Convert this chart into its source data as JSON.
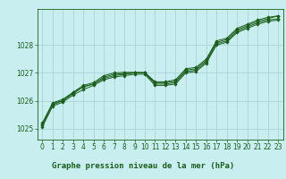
{
  "title": "Graphe pression niveau de la mer (hPa)",
  "background_color": "#c8eef0",
  "grid_color": "#aad4d8",
  "line_color": "#1a5e1a",
  "xlim": [
    -0.5,
    23.5
  ],
  "ylim": [
    1024.6,
    1029.3
  ],
  "yticks": [
    1025,
    1026,
    1027,
    1028
  ],
  "xticks": [
    0,
    1,
    2,
    3,
    4,
    5,
    6,
    7,
    8,
    9,
    10,
    11,
    12,
    13,
    14,
    15,
    16,
    17,
    18,
    19,
    20,
    21,
    22,
    23
  ],
  "series1_x": [
    0,
    1,
    2,
    3,
    4,
    5,
    6,
    7,
    8,
    9,
    10,
    11,
    12,
    13,
    14,
    15,
    16,
    17,
    18,
    19,
    20,
    21,
    22,
    23
  ],
  "series1_y": [
    1025.2,
    1025.9,
    1026.0,
    1026.3,
    1026.5,
    1026.6,
    1026.85,
    1026.95,
    1026.98,
    1027.0,
    1027.0,
    1026.65,
    1026.65,
    1026.7,
    1027.1,
    1027.15,
    1027.45,
    1028.1,
    1028.2,
    1028.55,
    1028.7,
    1028.85,
    1028.95,
    1029.05
  ],
  "series2_x": [
    0,
    1,
    2,
    3,
    4,
    5,
    6,
    7,
    8,
    9,
    10,
    11,
    12,
    13,
    14,
    15,
    16,
    17,
    18,
    19,
    20,
    21,
    22,
    23
  ],
  "series2_y": [
    1025.1,
    1025.85,
    1026.0,
    1026.25,
    1026.5,
    1026.6,
    1026.8,
    1026.9,
    1026.95,
    1027.0,
    1027.0,
    1026.6,
    1026.6,
    1026.65,
    1027.05,
    1027.1,
    1027.4,
    1028.05,
    1028.15,
    1028.5,
    1028.65,
    1028.8,
    1028.9,
    1028.95
  ],
  "series3_x": [
    0,
    1,
    2,
    3,
    4,
    5,
    6,
    7,
    8,
    9,
    10,
    11,
    12,
    13,
    14,
    15,
    16,
    17,
    18,
    19,
    20,
    21,
    22,
    23
  ],
  "series3_y": [
    1025.05,
    1025.8,
    1025.95,
    1026.2,
    1026.4,
    1026.55,
    1026.75,
    1026.85,
    1026.9,
    1026.95,
    1026.95,
    1026.55,
    1026.55,
    1026.6,
    1027.0,
    1027.05,
    1027.35,
    1028.0,
    1028.1,
    1028.45,
    1028.6,
    1028.75,
    1028.85,
    1028.9
  ],
  "series4_x": [
    0,
    1,
    2,
    3,
    4,
    5,
    6,
    7,
    8,
    9,
    10,
    11,
    12,
    13,
    14,
    15,
    16,
    17,
    18,
    19,
    20,
    21,
    22,
    23
  ],
  "series4_y": [
    1025.15,
    1025.92,
    1026.05,
    1026.3,
    1026.55,
    1026.65,
    1026.9,
    1027.0,
    1027.02,
    1027.02,
    1027.02,
    1026.68,
    1026.68,
    1026.75,
    1027.15,
    1027.2,
    1027.5,
    1028.15,
    1028.25,
    1028.6,
    1028.75,
    1028.9,
    1029.0,
    1029.05
  ],
  "marker": "D",
  "markersize": 1.8,
  "linewidth": 0.7,
  "tick_fontsize": 5.5,
  "xlabel_fontsize": 6.5
}
